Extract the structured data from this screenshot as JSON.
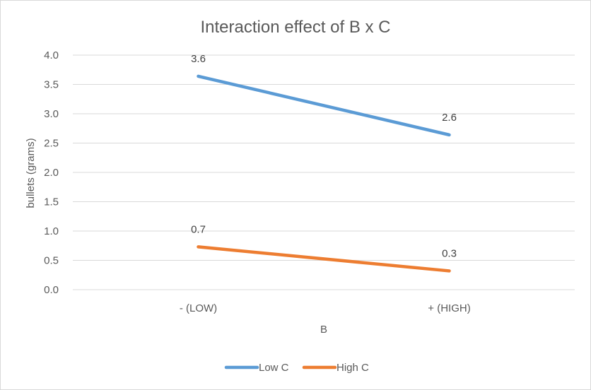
{
  "chart_data": {
    "type": "line",
    "title": "Interaction effect of B x C",
    "xlabel": "B",
    "ylabel": "bullets (grams)",
    "categories": [
      "- (LOW)",
      "+ (HIGH)"
    ],
    "ylim": [
      0,
      4
    ],
    "ytick_labels": [
      "0.0",
      "0.5",
      "1.0",
      "1.5",
      "2.0",
      "2.5",
      "3.0",
      "3.5",
      "4.0"
    ],
    "grid": "horizontal",
    "legend_position": "bottom",
    "series": [
      {
        "name": "Low C",
        "color": "#5b9bd5",
        "values": [
          3.64,
          2.64
        ],
        "labels": [
          "3.6",
          "2.6"
        ]
      },
      {
        "name": "High C",
        "color": "#ed7d31",
        "values": [
          0.73,
          0.32
        ],
        "labels": [
          "0.7",
          "0.3"
        ]
      }
    ]
  }
}
